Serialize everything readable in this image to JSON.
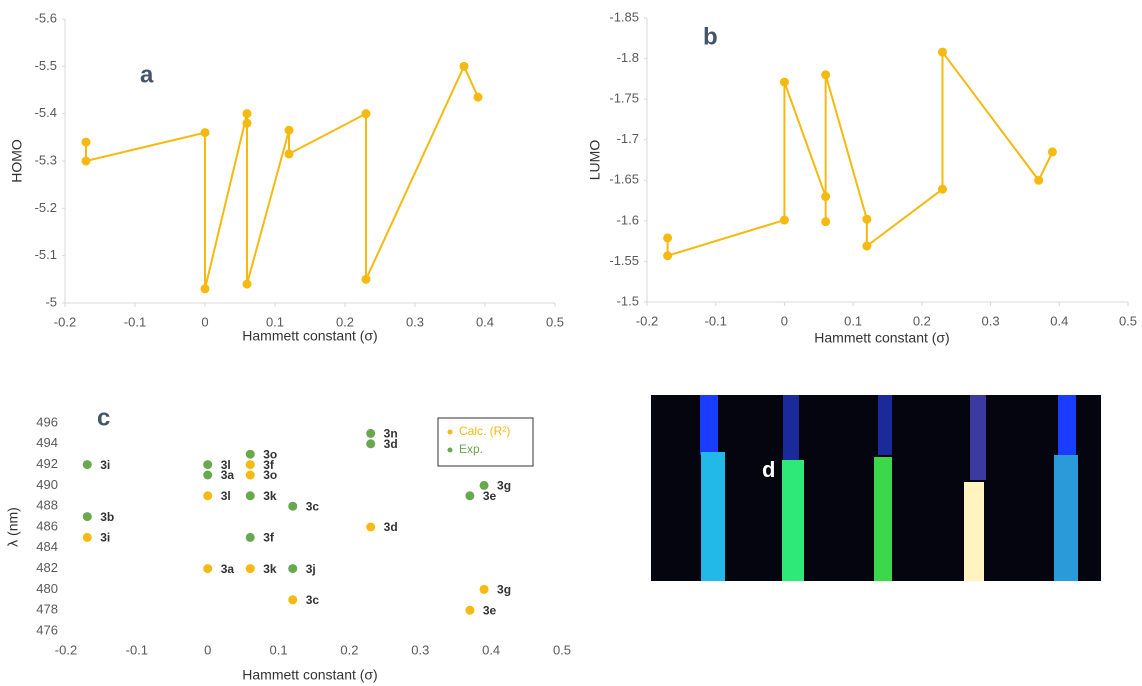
{
  "chart_data": [
    {
      "type": "line",
      "panel_label": "a",
      "x_label": "Hammett constant (σ)",
      "y_label": "HOMO",
      "color": "#f5b90f",
      "x": [
        -0.17,
        -0.17,
        0,
        0,
        0.06,
        0.06,
        0.06,
        0.12,
        0.12,
        0.23,
        0.23,
        0.37,
        0.39
      ],
      "values": [
        -5.34,
        -5.3,
        -5.36,
        -5.03,
        -5.4,
        -5.38,
        -5.04,
        -5.365,
        -5.315,
        -5.4,
        -5.05,
        -5.5,
        -5.435
      ],
      "xlim": [
        -0.2,
        0.5
      ],
      "xticks": [
        -0.2,
        -0.1,
        0,
        0.1,
        0.2,
        0.3,
        0.4,
        0.5
      ],
      "ylim": [
        -5,
        -5.6
      ],
      "yticks": [
        -5.6,
        -5.5,
        -5.4,
        -5.3,
        -5.2,
        -5.1,
        -5
      ]
    },
    {
      "type": "line",
      "panel_label": "b",
      "x_label": "Hammett constant (σ)",
      "y_label": "LUMO",
      "color": "#f5b90f",
      "x": [
        -0.17,
        -0.17,
        0,
        0,
        0.06,
        0.06,
        0.06,
        0.12,
        0.12,
        0.23,
        0.23,
        0.37,
        0.39
      ],
      "values": [
        -1.579,
        -1.557,
        -1.601,
        -1.771,
        -1.63,
        -1.599,
        -1.78,
        -1.602,
        -1.569,
        -1.639,
        -1.808,
        -1.65,
        -1.685
      ],
      "xlim": [
        -0.2,
        0.5
      ],
      "xticks": [
        -0.2,
        -0.1,
        0,
        0.1,
        0.2,
        0.3,
        0.4,
        0.5
      ],
      "ylim": [
        -1.5,
        -1.85
      ],
      "yticks": [
        -1.85,
        -1.8,
        -1.75,
        -1.7,
        -1.65,
        -1.6,
        -1.55,
        -1.5
      ]
    },
    {
      "type": "scatter",
      "panel_label": "c",
      "x_label": "Hammett constant (σ)",
      "y_label": "λ (nm)",
      "xlim": [
        -0.2,
        0.5
      ],
      "xticks": [
        -0.2,
        -0.1,
        0,
        0.1,
        0.2,
        0.3,
        0.4,
        0.5
      ],
      "ylim": [
        476,
        496
      ],
      "yticks": [
        476,
        478,
        480,
        482,
        484,
        486,
        488,
        490,
        492,
        494,
        496
      ],
      "series": [
        {
          "name": "Calc. (R²)",
          "color": "#f5b90f",
          "x": [
            -0.17,
            0,
            0,
            0.06,
            0.06,
            0.06,
            0.12,
            0.23,
            0.39,
            0.37
          ],
          "values": [
            485,
            489,
            482,
            491,
            492,
            482,
            479,
            486,
            480,
            478
          ],
          "labels": [
            "3i",
            "3l",
            "3a",
            "3o",
            "3f",
            "3k",
            "3c",
            "3d",
            "3g",
            "3e"
          ]
        },
        {
          "name": "Exp.",
          "color": "#6aa84f",
          "x": [
            -0.17,
            -0.17,
            0,
            0,
            0.06,
            0.06,
            0.06,
            0.12,
            0.12,
            0.23,
            0.23,
            0.39,
            0.37
          ],
          "values": [
            492,
            487,
            492,
            491,
            493,
            489,
            485,
            488,
            482,
            495,
            494,
            490,
            489
          ],
          "labels": [
            "3i",
            "3b",
            "3l",
            "3a",
            "3o",
            "3k",
            "3f",
            "3c",
            "3j",
            "3n",
            "3d",
            "3g",
            "3e"
          ]
        }
      ]
    }
  ],
  "image_panel": {
    "panel_label": "d"
  }
}
